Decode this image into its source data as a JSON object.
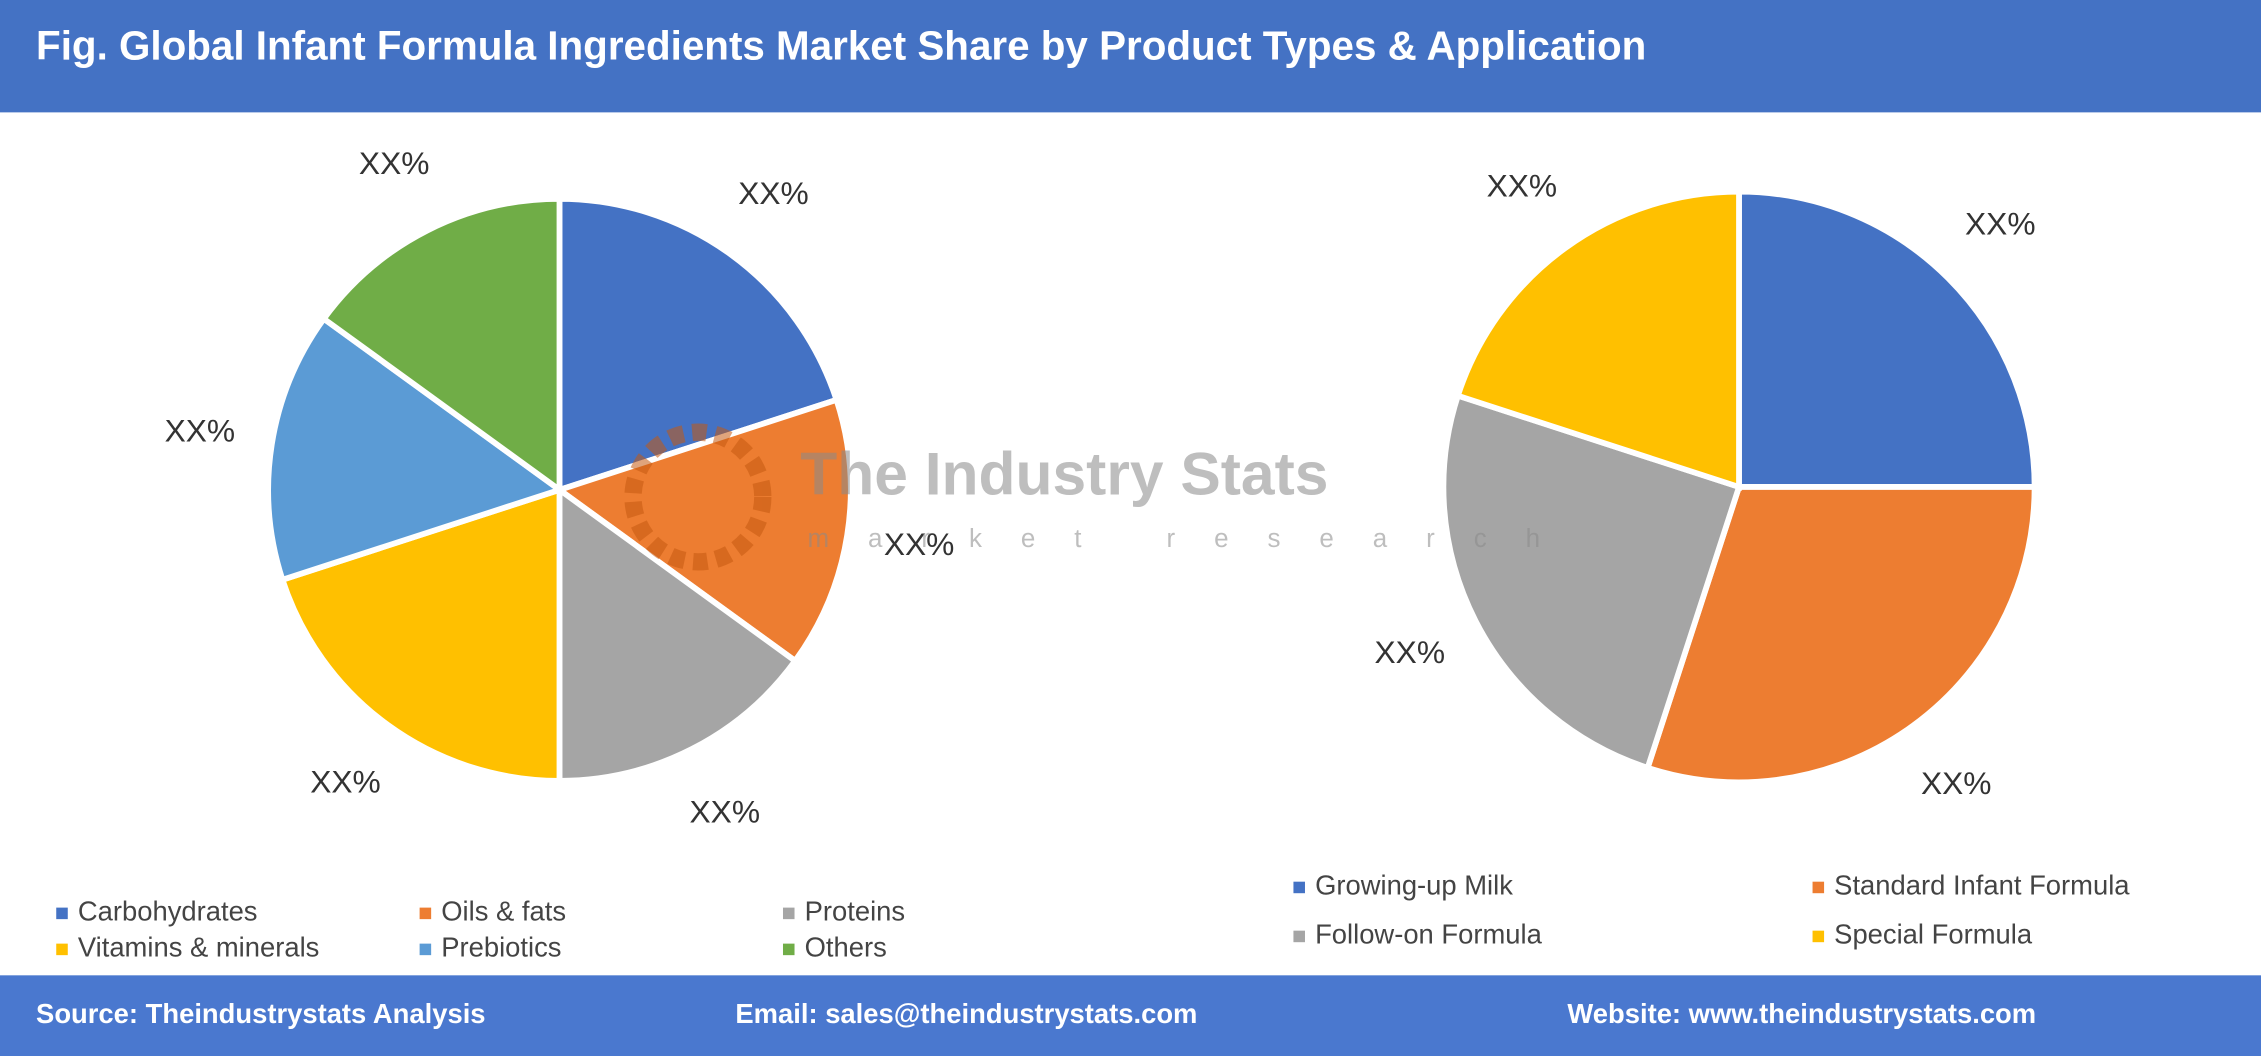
{
  "header": {
    "title": "Fig. Global Infant Formula Ingredients Market Share by Product Types & Application"
  },
  "watermark": {
    "name": "The Industry Stats",
    "tagline": "market research"
  },
  "chart_data": [
    {
      "type": "pie",
      "categories": [
        "Carbohydrates",
        "Oils & fats",
        "Proteins",
        "Vitamins & minerals",
        "Prebiotics",
        "Others"
      ],
      "values": [
        20,
        15,
        15,
        20,
        15,
        15
      ],
      "value_labels": [
        "XX%",
        "XX%",
        "XX%",
        "XX%",
        "XX%",
        "XX%"
      ],
      "colors": [
        "#4472c4",
        "#ed7d31",
        "#a5a5a5",
        "#ffc000",
        "#5b9bd5",
        "#70ad47"
      ]
    },
    {
      "type": "pie",
      "categories": [
        "Growing-up Milk",
        "Standard Infant Formula",
        "Follow-on Formula",
        "Special Formula"
      ],
      "values": [
        25,
        30,
        25,
        20
      ],
      "value_labels": [
        "XX%",
        "XX%",
        "XX%",
        "XX%"
      ],
      "colors": [
        "#4472c4",
        "#ed7d31",
        "#a5a5a5",
        "#ffc000"
      ]
    }
  ],
  "footer": {
    "source": "Source: Theindustrystats Analysis",
    "email": "Email: sales@theindustrystats.com",
    "website": "Website: www.theindustrystats.com"
  }
}
